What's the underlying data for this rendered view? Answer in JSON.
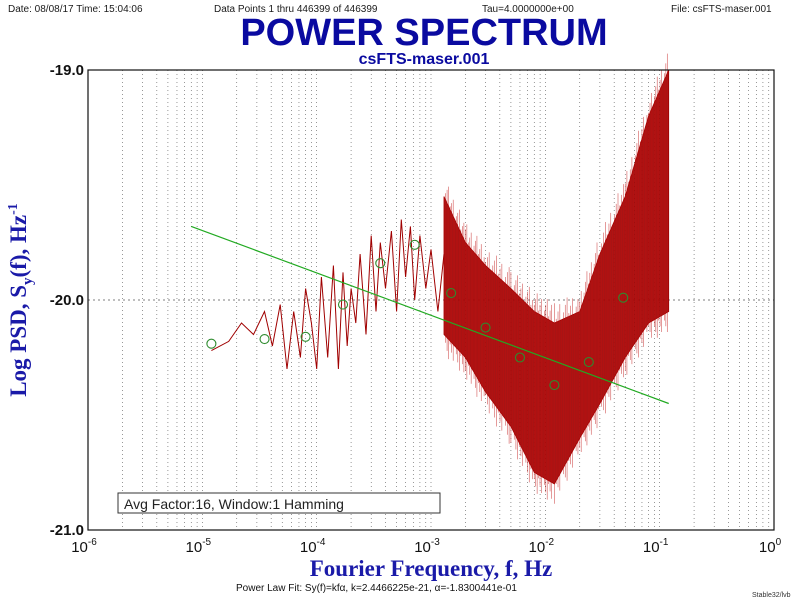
{
  "header": {
    "date_time": "Date: 08/08/17  Time: 15:04:06",
    "data_points": "Data Points 1 thru 446399 of 446399",
    "tau": "Tau=4.0000000e+00",
    "file": "File: csFTS-maser.001"
  },
  "footer": {
    "fit_text": "Power Law Fit: Sy(f)=kfα, k=2.4466225e-21, α=-1.8300441e-01",
    "credit": "Stable32/lvb"
  },
  "annotation": "Avg Factor:16, Window:1 Hamming",
  "colors": {
    "title": "#0a0aa0",
    "psd": "#a00000",
    "fit": "#22aa22",
    "avg_markers": "#2e8b2e",
    "grid": "#555555"
  },
  "chart_data": {
    "type": "line",
    "title": "POWER SPECTRUM",
    "subtitle": "csFTS-maser.001",
    "xlabel": "Fourier Frequency, f, Hz",
    "ylabel": "Log PSD, S",
    "ylabel_sub": "y",
    "ylabel_tail": "(f), Hz",
    "ylabel_sup": "-1",
    "x_scale": "log",
    "xlim": [
      1e-06,
      1
    ],
    "ylim": [
      -21.0,
      -19.0
    ],
    "x_ticks": [
      {
        "base": "10",
        "exp": "-6",
        "value": 1e-06
      },
      {
        "base": "10",
        "exp": "-5",
        "value": 1e-05
      },
      {
        "base": "10",
        "exp": "-4",
        "value": 0.0001
      },
      {
        "base": "10",
        "exp": "-3",
        "value": 0.001
      },
      {
        "base": "10",
        "exp": "-2",
        "value": 0.01
      },
      {
        "base": "10",
        "exp": "-1",
        "value": 0.1
      },
      {
        "base": "10",
        "exp": "0",
        "value": 1
      }
    ],
    "y_ticks": [
      {
        "label": "-19.0",
        "value": -19.0
      },
      {
        "label": "-20.0",
        "value": -20.0
      },
      {
        "label": "-21.0",
        "value": -21.0
      }
    ],
    "grid": true,
    "series": [
      {
        "style": "psd_line",
        "x": [
          1.2e-05,
          1.7e-05,
          2.2e-05,
          2.8e-05,
          3.5e-05,
          4.1e-05,
          4.8e-05,
          5.5e-05,
          6.3e-05,
          7.2e-05,
          8e-05,
          9e-05,
          0.0001,
          0.00011,
          0.000125,
          0.00014,
          0.000155,
          0.00017,
          0.000185,
          0.0002,
          0.00022,
          0.00024,
          0.00027,
          0.0003,
          0.00033,
          0.00036,
          0.0004,
          0.00045,
          0.0005,
          0.00055,
          0.0006,
          0.00066,
          0.00072,
          0.0008,
          0.0009,
          0.001,
          0.00115,
          0.0013
        ],
        "y": [
          -20.22,
          -20.18,
          -20.1,
          -20.15,
          -20.05,
          -20.2,
          -20.02,
          -20.3,
          -20.05,
          -20.25,
          -19.95,
          -20.1,
          -20.3,
          -19.9,
          -20.25,
          -19.85,
          -20.3,
          -19.88,
          -20.2,
          -19.95,
          -20.1,
          -19.8,
          -20.15,
          -19.72,
          -20.05,
          -19.75,
          -19.95,
          -19.7,
          -20.05,
          -19.65,
          -19.9,
          -19.68,
          -20.0,
          -19.72,
          -19.95,
          -19.78,
          -20.05,
          -19.8
        ],
        "envelope_x": [
          0.0013,
          0.002,
          0.003,
          0.005,
          0.008,
          0.012,
          0.02,
          0.03,
          0.05,
          0.08,
          0.12
        ],
        "envelope_hi": [
          -19.55,
          -19.75,
          -19.85,
          -19.95,
          -20.05,
          -20.1,
          -20.05,
          -19.8,
          -19.55,
          -19.2,
          -19.0
        ],
        "envelope_lo": [
          -20.15,
          -20.25,
          -20.4,
          -20.55,
          -20.75,
          -20.8,
          -20.6,
          -20.45,
          -20.25,
          -20.1,
          -20.05
        ]
      },
      {
        "style": "power_law_fit",
        "x": [
          8e-06,
          0.12
        ],
        "y": [
          -19.68,
          -20.45
        ]
      },
      {
        "style": "avg_markers",
        "x": [
          1.2e-05,
          3.5e-05,
          8e-05,
          0.00017,
          0.00036,
          0.00072,
          0.0015,
          0.003,
          0.006,
          0.012,
          0.024,
          0.048
        ],
        "y": [
          -20.19,
          -20.17,
          -20.16,
          -20.02,
          -19.84,
          -19.76,
          -19.97,
          -20.12,
          -20.25,
          -20.37,
          -20.27,
          -19.99
        ]
      }
    ]
  }
}
